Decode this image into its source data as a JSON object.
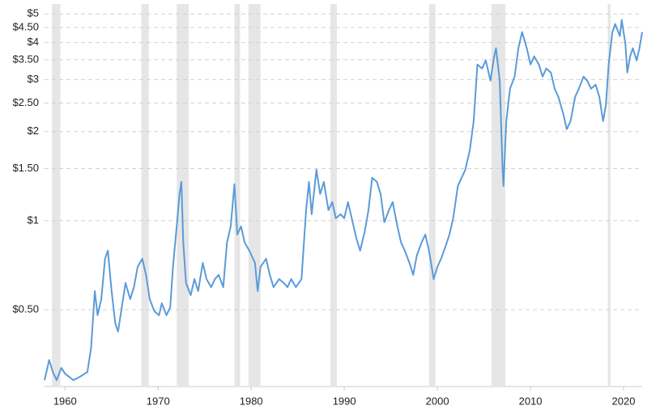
{
  "chart_data": {
    "type": "line",
    "x": [
      1957.8,
      1958.3,
      1958.7,
      1959.1,
      1959.6,
      1960,
      1960.9,
      1961.7,
      1962.4,
      1962.8,
      1963.2,
      1963.5,
      1963.9,
      1964.3,
      1964.6,
      1965,
      1965.4,
      1965.7,
      1966.1,
      1966.5,
      1967,
      1967.4,
      1967.8,
      1968.3,
      1968.7,
      1969.1,
      1969.6,
      1970.1,
      1970.4,
      1970.9,
      1971.3,
      1971.6,
      1972,
      1972.3,
      1972.5,
      1972.7,
      1973,
      1973.5,
      1973.9,
      1974.3,
      1974.8,
      1975.2,
      1975.7,
      1976.1,
      1976.5,
      1977,
      1977.4,
      1977.8,
      1978.2,
      1978.5,
      1978.9,
      1979.3,
      1979.8,
      1980.4,
      1980.7,
      1981,
      1981.6,
      1982,
      1982.4,
      1983,
      1983.5,
      1983.9,
      1984.3,
      1984.8,
      1985.4,
      1985.9,
      1986.2,
      1986.5,
      1987,
      1987.4,
      1987.8,
      1988.3,
      1988.7,
      1989.1,
      1989.6,
      1990,
      1990.4,
      1990.9,
      1991.3,
      1991.7,
      1992.2,
      1992.6,
      1993,
      1993.5,
      1993.9,
      1994.3,
      1994.8,
      1995.2,
      1995.7,
      1996.1,
      1996.5,
      1997,
      1997.4,
      1997.8,
      1998.3,
      1998.7,
      1999.1,
      1999.6,
      2000,
      2000.4,
      2000.9,
      2001.3,
      2001.7,
      2002.2,
      2002.6,
      2003,
      2003.5,
      2003.9,
      2004.3,
      2004.8,
      2005.2,
      2005.7,
      2006.1,
      2006.3,
      2006.7,
      2007,
      2007.1,
      2007.4,
      2007.8,
      2008.3,
      2008.7,
      2009.1,
      2009.6,
      2010,
      2010.4,
      2010.9,
      2011.3,
      2011.7,
      2012.2,
      2012.6,
      2013,
      2013.5,
      2013.9,
      2014.3,
      2014.8,
      2015.2,
      2015.7,
      2016.1,
      2016.5,
      2017,
      2017.4,
      2017.8,
      2018.1,
      2018.4,
      2018.8,
      2019.1,
      2019.6,
      2019.8,
      2020.2,
      2020.4,
      2020.7,
      2021,
      2021.4,
      2021.7,
      2022
    ],
    "series": [
      {
        "color": "#5b9bd9",
        "values": [
          0.289,
          0.338,
          0.308,
          0.289,
          0.318,
          0.304,
          0.289,
          0.298,
          0.308,
          0.372,
          0.578,
          0.479,
          0.543,
          0.744,
          0.792,
          0.578,
          0.449,
          0.422,
          0.51,
          0.616,
          0.543,
          0.596,
          0.698,
          0.744,
          0.656,
          0.543,
          0.494,
          0.479,
          0.526,
          0.479,
          0.51,
          0.698,
          0.957,
          1.231,
          1.353,
          0.844,
          0.616,
          0.56,
          0.635,
          0.578,
          0.72,
          0.635,
          0.596,
          0.635,
          0.656,
          0.596,
          0.844,
          0.957,
          1.328,
          0.898,
          0.957,
          0.844,
          0.792,
          0.72,
          0.578,
          0.698,
          0.744,
          0.656,
          0.596,
          0.635,
          0.616,
          0.596,
          0.635,
          0.596,
          0.635,
          1.085,
          1.353,
          1.052,
          1.487,
          1.231,
          1.353,
          1.085,
          1.156,
          1.019,
          1.052,
          1.019,
          1.156,
          0.988,
          0.87,
          0.792,
          0.92,
          1.085,
          1.397,
          1.353,
          1.231,
          0.988,
          1.085,
          1.156,
          0.957,
          0.844,
          0.792,
          0.72,
          0.656,
          0.765,
          0.844,
          0.898,
          0.792,
          0.635,
          0.698,
          0.744,
          0.822,
          0.898,
          1.019,
          1.311,
          1.397,
          1.487,
          1.741,
          2.171,
          3.374,
          3.27,
          3.483,
          2.974,
          3.594,
          3.827,
          2.974,
          1.487,
          1.311,
          2.171,
          2.793,
          3.071,
          3.827,
          4.341,
          3.827,
          3.374,
          3.594,
          3.374,
          3.071,
          3.27,
          3.168,
          2.793,
          2.622,
          2.312,
          2.038,
          2.171,
          2.622,
          2.793,
          3.071,
          2.974,
          2.793,
          2.883,
          2.622,
          2.171,
          2.462,
          3.374,
          4.341,
          4.623,
          4.208,
          4.773,
          3.951,
          3.168,
          3.594,
          3.827,
          3.483,
          3.827,
          4.341
        ]
      }
    ],
    "xlim": [
      1957.8,
      2022
    ],
    "xticks": [
      1960,
      1970,
      1980,
      1990,
      2000,
      2010,
      2020
    ],
    "ylim": [
      0.275,
      5.4
    ],
    "yticks": [
      {
        "value": 0.5,
        "label": "$0.50"
      },
      {
        "value": 1,
        "label": "$1"
      },
      {
        "value": 1.5,
        "label": "$1.50"
      },
      {
        "value": 2,
        "label": "$2"
      },
      {
        "value": 2.5,
        "label": "$2.50"
      },
      {
        "value": 3,
        "label": "$3"
      },
      {
        "value": 3.5,
        "label": "$3.50"
      },
      {
        "value": 4,
        "label": "$4"
      },
      {
        "value": 4.5,
        "label": "$4.50"
      },
      {
        "value": 5,
        "label": "$5"
      }
    ],
    "log_scale": true,
    "grid": true,
    "shaded_periods": [
      [
        1958.6,
        1959.5
      ],
      [
        1968.2,
        1969.0
      ],
      [
        1972.0,
        1973.3
      ],
      [
        1978.2,
        1978.8
      ],
      [
        1979.7,
        1981.0
      ],
      [
        1988.5,
        1989.2
      ],
      [
        1999.1,
        1999.8
      ],
      [
        2005.8,
        2007.3
      ],
      [
        2018.3,
        2018.6
      ]
    ],
    "shaded_color": "#e6e6e6"
  }
}
